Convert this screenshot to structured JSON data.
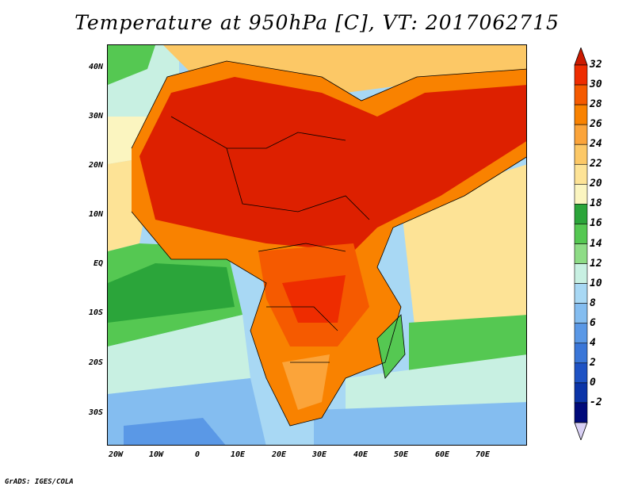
{
  "title": "Temperature at 950hPa [C], VT: 2017062715",
  "credit": "GrADS: IGES/COLA",
  "map": {
    "lat_labels": [
      "40N",
      "30N",
      "20N",
      "10N",
      "EQ",
      "10S",
      "20S",
      "30S"
    ],
    "lon_labels": [
      "20W",
      "10W",
      "0",
      "10E",
      "20E",
      "30E",
      "40E",
      "50E",
      "60E",
      "70E"
    ]
  },
  "colorbar": {
    "labels": [
      "32",
      "30",
      "28",
      "26",
      "24",
      "22",
      "20",
      "18",
      "16",
      "14",
      "12",
      "10",
      "8",
      "6",
      "4",
      "2",
      "0",
      "-2"
    ],
    "colors": [
      "#ee2c00",
      "#f55a00",
      "#f98200",
      "#fba43a",
      "#fcc866",
      "#fde396",
      "#fbf5c0",
      "#2ba53a",
      "#55c852",
      "#8edc86",
      "#c8f0e2",
      "#a8d8f4",
      "#84bdf0",
      "#5a98e6",
      "#3a76d8",
      "#1e52c4",
      "#0b34a8",
      "#000a7a"
    ],
    "top_arrow_color": "#cc1a00",
    "bottom_arrow_color": "#d8d0f4"
  }
}
